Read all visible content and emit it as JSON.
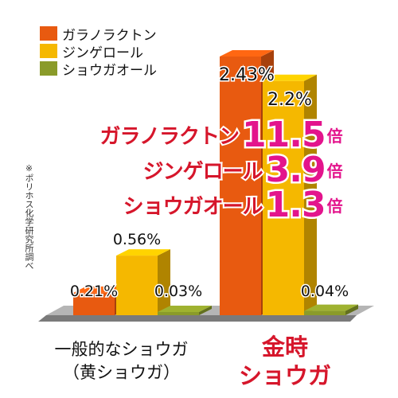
{
  "legend": [
    {
      "label": "ガラノラクトン",
      "color": "#e85a10"
    },
    {
      "label": "ジンゲロール",
      "color": "#f5b800"
    },
    {
      "label": "ショウガオール",
      "color": "#8a9b2a"
    }
  ],
  "note": "※ポリホス化学研究所調べ",
  "ratio": [
    {
      "name": "ガラノラクトン",
      "value": "11.5",
      "unit": "倍"
    },
    {
      "name": "ジンゲロール",
      "value": "3.9",
      "unit": "倍"
    },
    {
      "name": "ショウガオール",
      "value": "1.3",
      "unit": "倍"
    }
  ],
  "categories": {
    "normal": {
      "line1": "一般的なショウガ",
      "line2": "（黄ショウガ）"
    },
    "kintoki": {
      "line1": "金時",
      "line2": "ショウガ"
    }
  },
  "colors": {
    "galanolactone": "#e85a10",
    "gingerol": "#f5b800",
    "shogaol": "#8a9b2a",
    "ratio_name": "#d6162b",
    "ratio_value": "#e3148c",
    "floor": "#7a7a7a"
  },
  "chart_data": {
    "type": "bar",
    "categories": [
      "一般的なショウガ（黄ショウガ）",
      "金時ショウガ"
    ],
    "series": [
      {
        "name": "ガラノラクトン",
        "values": [
          0.21,
          2.43
        ],
        "labels": [
          "0.21%",
          "2.43%"
        ]
      },
      {
        "name": "ジンゲロール",
        "values": [
          0.56,
          2.2
        ],
        "labels": [
          "0.56%",
          "2.2%"
        ]
      },
      {
        "name": "ショウガオール",
        "values": [
          0.03,
          0.04
        ],
        "labels": [
          "0.03%",
          "0.04%"
        ]
      }
    ],
    "ylim": [
      0,
      2.6
    ],
    "grid": false,
    "legend": "top-left"
  }
}
